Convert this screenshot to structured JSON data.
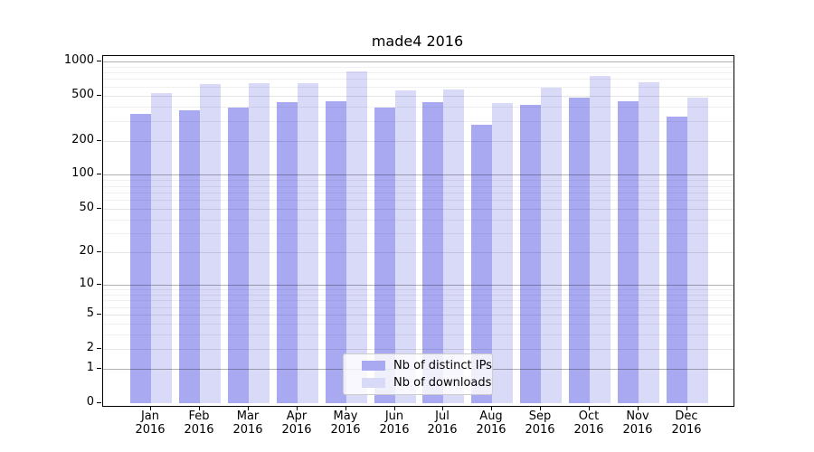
{
  "chart_data": {
    "type": "bar",
    "title": "made4 2016",
    "categories": [
      "Jan",
      "Feb",
      "Mar",
      "Apr",
      "May",
      "Jun",
      "Jul",
      "Aug",
      "Sep",
      "Oct",
      "Nov",
      "Dec"
    ],
    "category_year": "2016",
    "series": [
      {
        "name": "Nb of distinct IPs",
        "color": "#a9a9f2",
        "values": [
          345,
          372,
          393,
          439,
          447,
          393,
          439,
          277,
          415,
          481,
          447,
          327
        ]
      },
      {
        "name": "Nb of downloads",
        "color": "#d9d9f8",
        "values": [
          527,
          635,
          640,
          645,
          819,
          557,
          568,
          431,
          589,
          748,
          658,
          481
        ]
      }
    ],
    "y_ticks": [
      0,
      1,
      2,
      5,
      10,
      20,
      50,
      100,
      200,
      500,
      1000
    ],
    "y_scale": "log10(value+1)",
    "ylim": [
      0,
      1000
    ],
    "grid": true,
    "legend_position": "bottom-center",
    "colors": {
      "axis": "#000000",
      "major_grid": "rgba(0,0,0,0.30)",
      "labeled_grid": "rgba(0,0,0,0.10)",
      "minor_grid": "rgba(0,0,0,0.06)"
    }
  }
}
